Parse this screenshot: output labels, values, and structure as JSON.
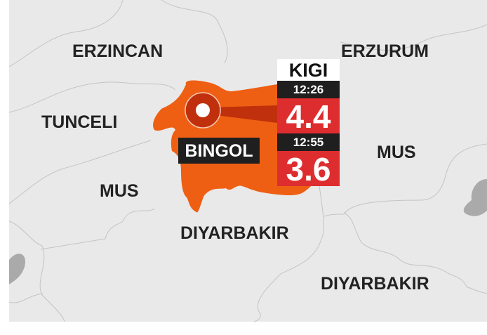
{
  "colors": {
    "background": "#e9e9e9",
    "highlight_province": "#ee5f13",
    "epicenter": "#c0300c",
    "magnitude_box": "#de2d2f",
    "time_box": "#1f1f1f",
    "border": "#bdbdbd",
    "water": "#aaaaaa"
  },
  "regions": [
    "ERZINCAN",
    "ERZURUM",
    "TUNCELI",
    "MUS",
    "MUS",
    "DIYARBAKIR",
    "DIYARBAKIR"
  ],
  "highlight": {
    "province": "BINGOL",
    "icon": "epicenter-marker-icon"
  },
  "earthquakes": {
    "location": "KIGI",
    "events": [
      {
        "time": "12:26",
        "magnitude": "4.4"
      },
      {
        "time": "12:55",
        "magnitude": "3.6"
      }
    ]
  }
}
